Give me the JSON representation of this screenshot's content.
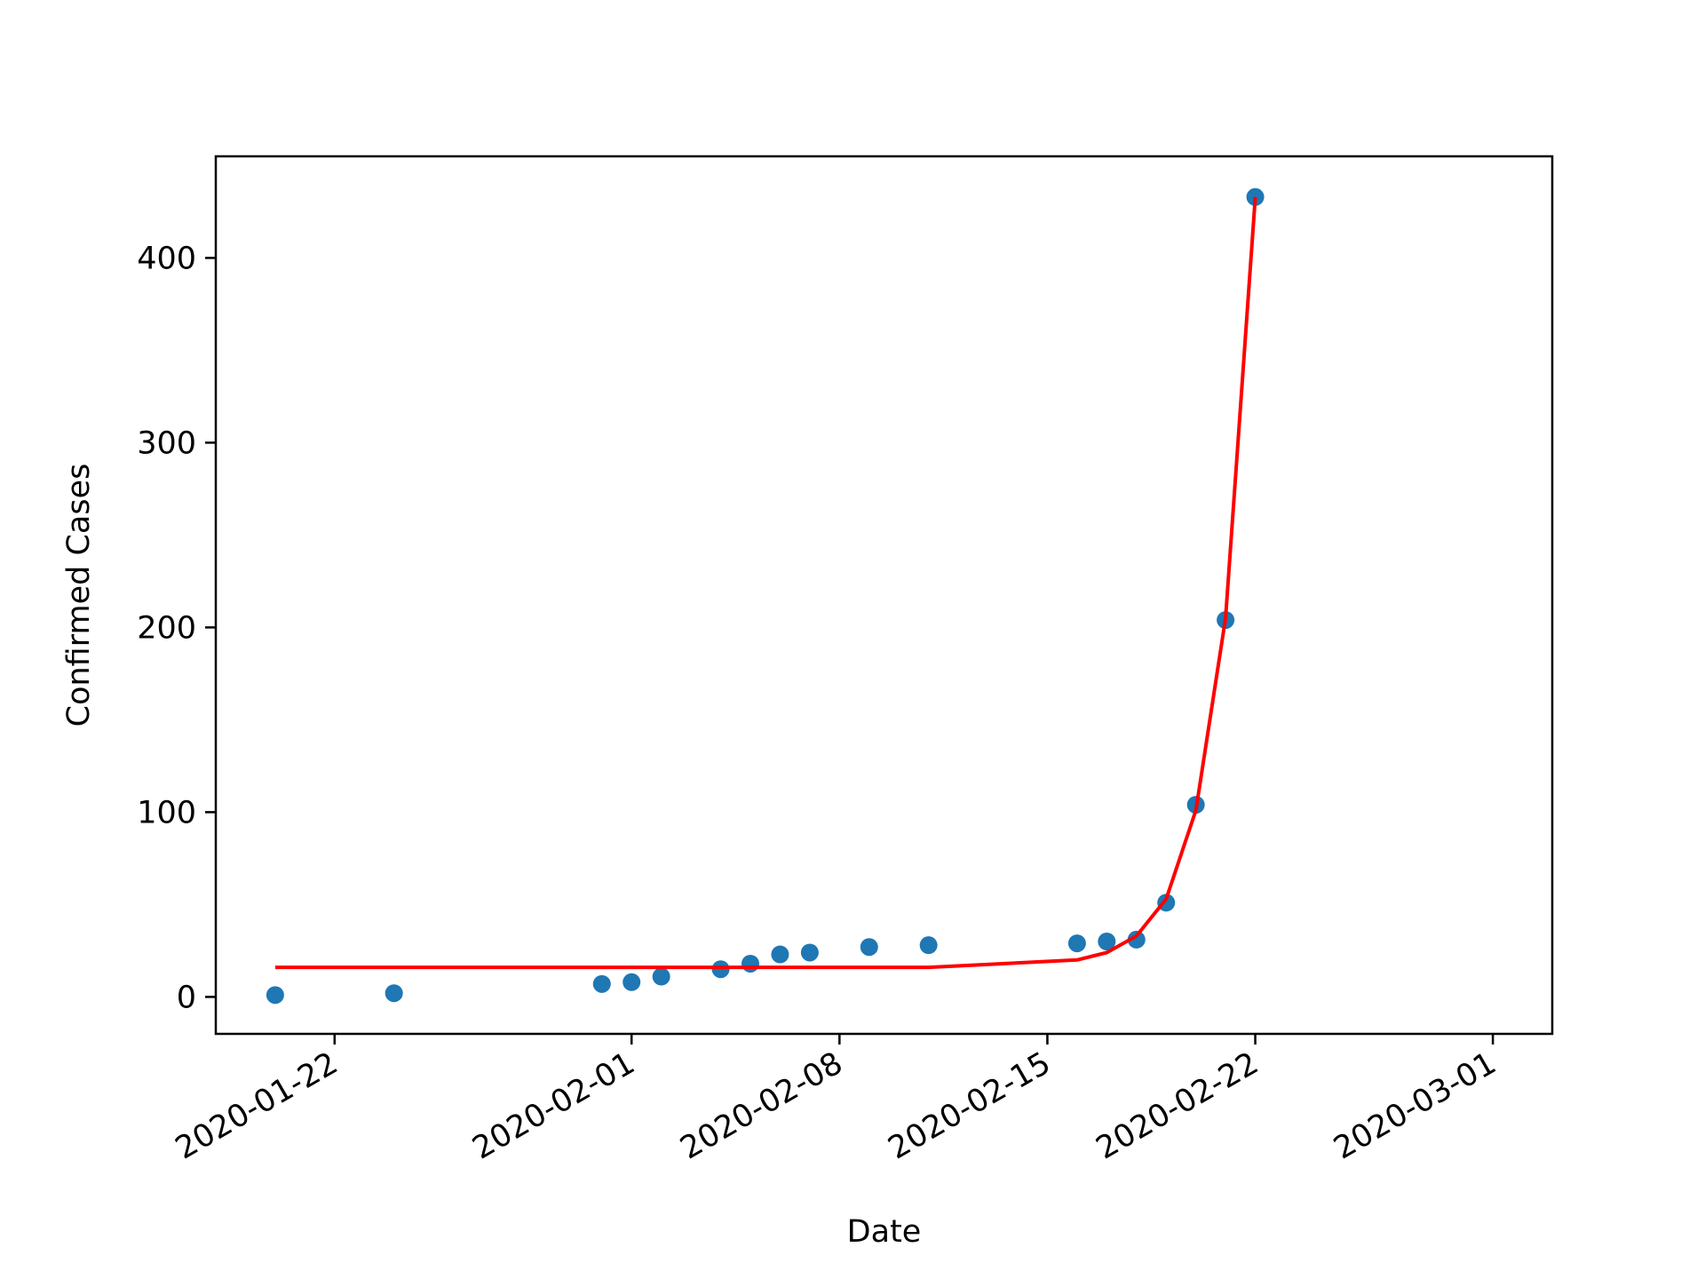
{
  "chart_data": {
    "type": "scatter",
    "xlabel": "Date",
    "ylabel": "Confirmed Cases",
    "xlim": [
      "2020-01-18",
      "2020-03-03"
    ],
    "ylim": [
      -20,
      455
    ],
    "x_ticks": [
      "2020-01-22",
      "2020-02-01",
      "2020-02-08",
      "2020-02-15",
      "2020-02-22",
      "2020-03-01"
    ],
    "y_ticks": [
      0,
      100,
      200,
      300,
      400
    ],
    "grid": false,
    "legend": "none",
    "series": [
      {
        "type": "scatter",
        "color": "#1f77b4",
        "x": [
          "2020-01-20",
          "2020-01-24",
          "2020-01-31",
          "2020-02-01",
          "2020-02-02",
          "2020-02-04",
          "2020-02-05",
          "2020-02-06",
          "2020-02-07",
          "2020-02-09",
          "2020-02-11",
          "2020-02-16",
          "2020-02-17",
          "2020-02-18",
          "2020-02-19",
          "2020-02-20",
          "2020-02-21",
          "2020-02-22"
        ],
        "y": [
          1,
          2,
          7,
          8,
          11,
          15,
          18,
          23,
          24,
          27,
          28,
          29,
          30,
          31,
          51,
          104,
          204,
          433
        ]
      },
      {
        "type": "line",
        "color": "#ff0000",
        "x": [
          "2020-01-20",
          "2020-01-24",
          "2020-01-31",
          "2020-02-01",
          "2020-02-02",
          "2020-02-04",
          "2020-02-05",
          "2020-02-06",
          "2020-02-07",
          "2020-02-09",
          "2020-02-11",
          "2020-02-16",
          "2020-02-17",
          "2020-02-18",
          "2020-02-19",
          "2020-02-20",
          "2020-02-21",
          "2020-02-22"
        ],
        "y": [
          16,
          16,
          16,
          16,
          16,
          16,
          16,
          16,
          16,
          16,
          16,
          20,
          24,
          33,
          53,
          101,
          205,
          433
        ]
      }
    ]
  }
}
